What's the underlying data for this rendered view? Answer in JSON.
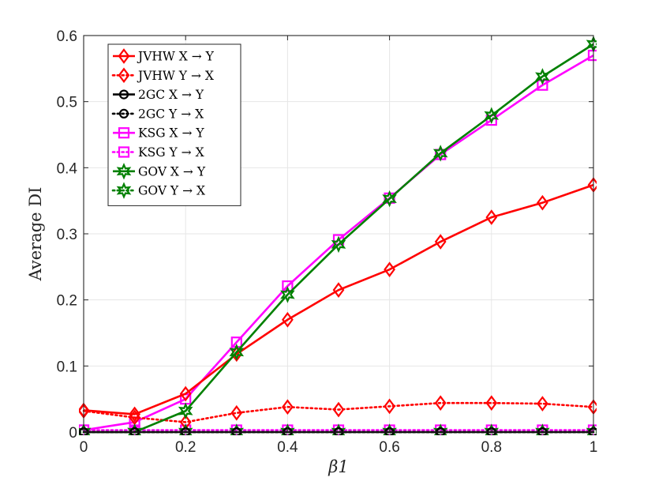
{
  "chart_data": {
    "type": "line",
    "title": "",
    "xlabel": "β1",
    "ylabel": "Average DI",
    "xlim": [
      0,
      1
    ],
    "ylim": [
      0,
      0.6
    ],
    "xticks": [
      0,
      0.2,
      0.4,
      0.6,
      0.8,
      1
    ],
    "xtick_labels": [
      "0",
      "0.2",
      "0.4",
      "0.6",
      "0.8",
      "1"
    ],
    "yticks": [
      0,
      0.1,
      0.2,
      0.3,
      0.4,
      0.5,
      0.6
    ],
    "ytick_labels": [
      "0",
      "0.1",
      "0.2",
      "0.3",
      "0.4",
      "0.5",
      "0.6"
    ],
    "grid": true,
    "legend_position": "top-left",
    "x": [
      0,
      0.1,
      0.2,
      0.3,
      0.4,
      0.5,
      0.6,
      0.7,
      0.8,
      0.9,
      1
    ],
    "series": [
      {
        "name": "JVHW X → Y",
        "color": "#ff0000",
        "dash": "solid",
        "marker": "diamond",
        "values": [
          0.033,
          0.027,
          0.058,
          0.118,
          0.17,
          0.215,
          0.246,
          0.288,
          0.325,
          0.347,
          0.374
        ]
      },
      {
        "name": "JVHW Y → X",
        "color": "#ff0000",
        "dash": "dotted",
        "marker": "diamond",
        "values": [
          0.032,
          0.022,
          0.015,
          0.029,
          0.038,
          0.034,
          0.039,
          0.044,
          0.044,
          0.043,
          0.038
        ]
      },
      {
        "name": "2GC X → Y",
        "color": "#000000",
        "dash": "solid",
        "marker": "circle",
        "values": [
          0.0,
          0.0,
          0.0,
          0.0,
          0.0,
          0.0,
          0.0,
          0.0,
          0.0,
          0.0,
          0.0
        ]
      },
      {
        "name": "2GC Y → X",
        "color": "#000000",
        "dash": "dotted",
        "marker": "circle",
        "values": [
          0.0,
          0.0,
          0.0,
          0.0,
          0.0,
          0.0,
          0.0,
          0.0,
          0.0,
          0.0,
          0.0
        ]
      },
      {
        "name": "KSG X → Y",
        "color": "#ff00ff",
        "dash": "solid",
        "marker": "square",
        "values": [
          0.003,
          0.015,
          0.05,
          0.136,
          0.221,
          0.291,
          0.354,
          0.42,
          0.472,
          0.525,
          0.57
        ]
      },
      {
        "name": "KSG Y → X",
        "color": "#ff00ff",
        "dash": "dotted",
        "marker": "square",
        "values": [
          0.003,
          0.003,
          0.003,
          0.003,
          0.003,
          0.003,
          0.003,
          0.003,
          0.003,
          0.003,
          0.003
        ]
      },
      {
        "name": "GOV X → Y",
        "color": "#008000",
        "dash": "solid",
        "marker": "hexagram",
        "values": [
          0.0,
          0.0,
          0.032,
          0.121,
          0.208,
          0.284,
          0.353,
          0.422,
          0.479,
          0.538,
          0.587
        ]
      },
      {
        "name": "GOV Y → X",
        "color": "#008000",
        "dash": "dotted",
        "marker": "hexagram",
        "values": [
          0.0,
          0.0,
          0.0,
          0.0,
          0.0,
          0.0,
          0.0,
          0.0,
          0.0,
          0.0,
          0.0
        ]
      }
    ]
  }
}
